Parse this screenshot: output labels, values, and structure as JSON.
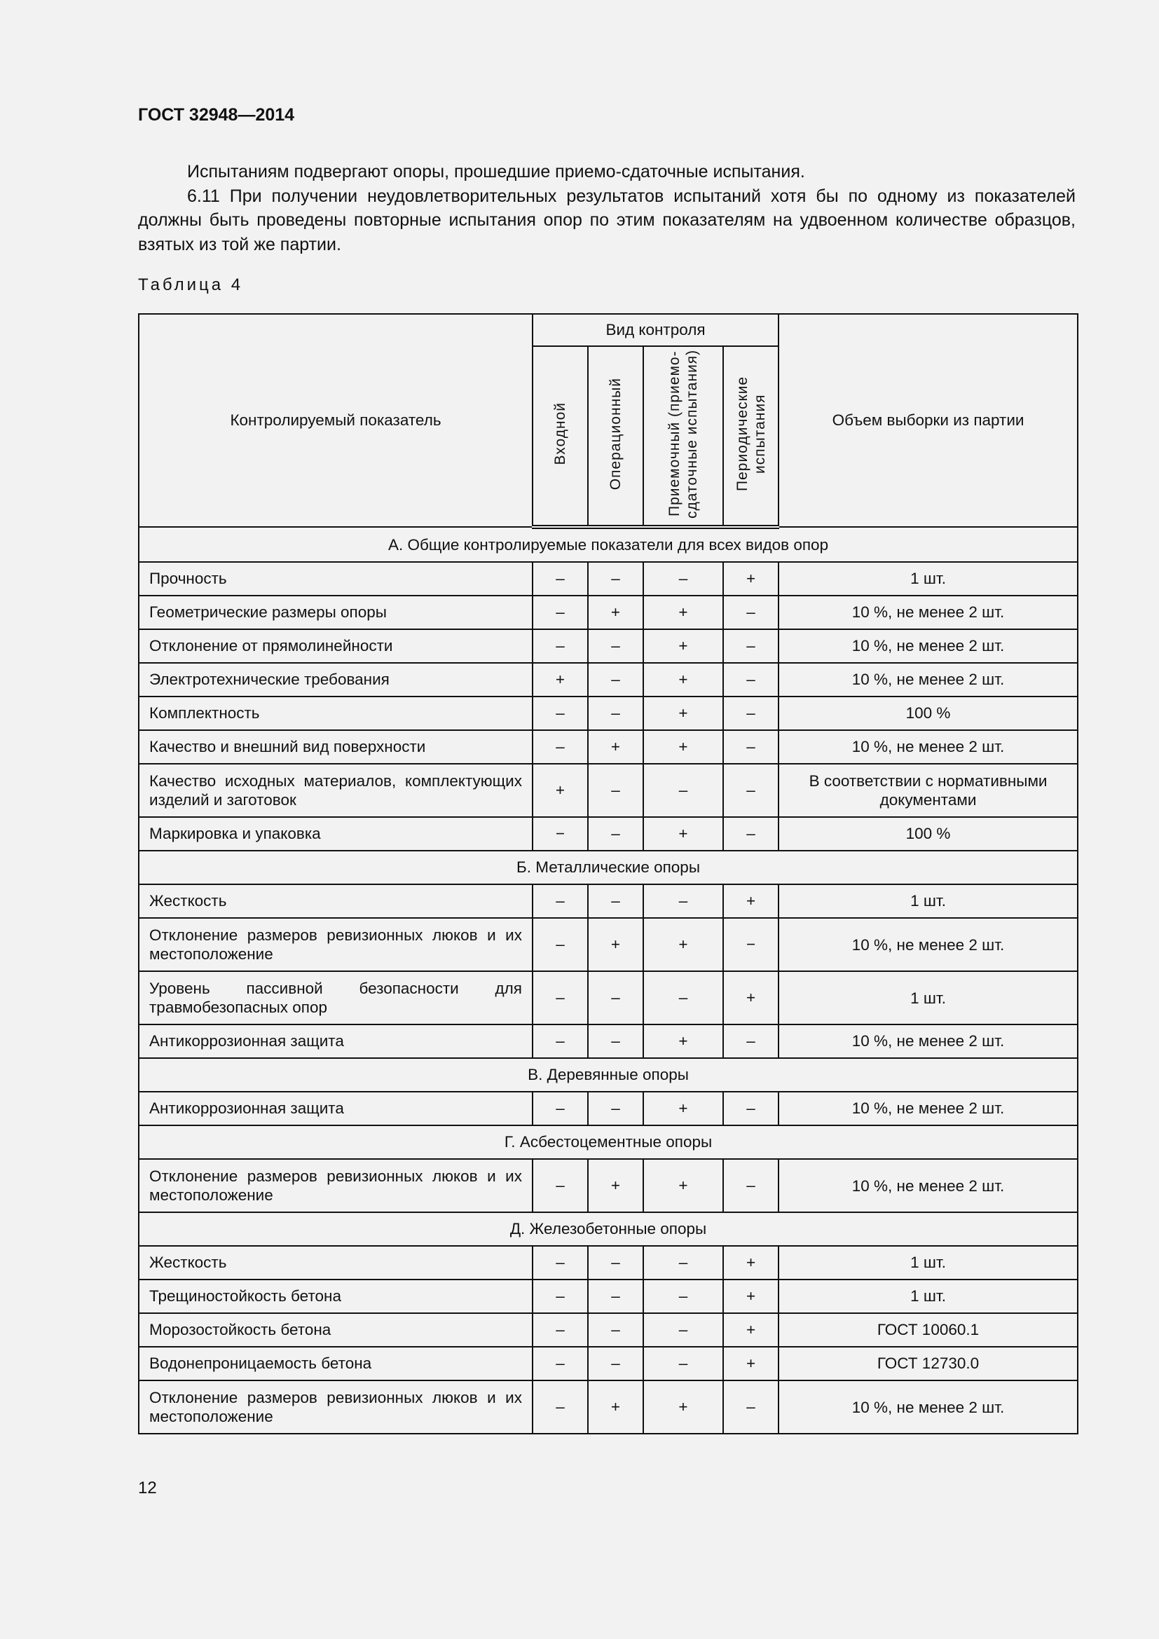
{
  "header": {
    "title": "ГОСТ 32948—2014"
  },
  "text": {
    "p1": "Испытаниям подвергают опоры, прошедшие приемо-сдаточные испытания.",
    "p2": "6.11 При получении неудовлетворительных результатов испытаний хотя бы по одному из показателей должны быть проведены повторные испытания опор по этим показателям на удвоенном количестве образцов, взятых из той же партии."
  },
  "table": {
    "caption": "Таблица 4",
    "headers": {
      "indicator": "Контролируемый показатель",
      "group": "Вид контроля",
      "c1": "Входной",
      "c2": "Операционный",
      "c3": "Приемочный (приемо-сдаточные испытания)",
      "c4": "Периодические испытания",
      "sample": "Объем выборки из партии"
    },
    "sections": [
      {
        "title": "А. Общие контролируемые показатели для всех видов опор",
        "rows": [
          [
            "Прочность",
            "–",
            "–",
            "–",
            "+",
            "1 шт."
          ],
          [
            "Геометрические размеры опоры",
            "–",
            "+",
            "+",
            "–",
            "10 %, не менее 2 шт."
          ],
          [
            "Отклонение от прямолинейности",
            "–",
            "–",
            "+",
            "–",
            "10 %, не менее 2 шт."
          ],
          [
            "Электротехнические требования",
            "+",
            "–",
            "+",
            "–",
            "10 %, не менее 2 шт."
          ],
          [
            "Комплектность",
            "–",
            "–",
            "+",
            "–",
            "100 %"
          ],
          [
            "Качество и внешний вид поверхности",
            "–",
            "+",
            "+",
            "–",
            "10 %, не менее 2 шт."
          ],
          [
            "Качество исходных материалов, комплектующих изделий и заготовок",
            "+",
            "–",
            "–",
            "–",
            "В соответствии с нормативными документами"
          ],
          [
            "Маркировка и упаковка",
            "−",
            "–",
            "+",
            "–",
            "100 %"
          ]
        ]
      },
      {
        "title": "Б. Металлические опоры",
        "rows": [
          [
            "Жесткость",
            "–",
            "–",
            "–",
            "+",
            "1 шт."
          ],
          [
            "Отклонение размеров ревизионных люков и их местоположение",
            "–",
            "+",
            "+",
            "−",
            "10 %, не менее 2 шт."
          ],
          [
            "Уровень пассивной безопасности для травмобезопасных опор",
            "–",
            "–",
            "–",
            "+",
            "1 шт."
          ],
          [
            "Антикоррозионная защита",
            "–",
            "–",
            "+",
            "–",
            "10 %, не менее 2 шт."
          ]
        ]
      },
      {
        "title": "В. Деревянные опоры",
        "rows": [
          [
            "Антикоррозионная защита",
            "–",
            "–",
            "+",
            "–",
            "10 %, не менее 2 шт."
          ]
        ]
      },
      {
        "title": "Г. Асбестоцементные опоры",
        "rows": [
          [
            "Отклонение размеров ревизионных люков и их местоположение",
            "–",
            "+",
            "+",
            "–",
            "10 %, не менее 2 шт."
          ]
        ]
      },
      {
        "title": "Д. Железобетонные опоры",
        "rows": [
          [
            "Жесткость",
            "–",
            "–",
            "–",
            "+",
            "1 шт."
          ],
          [
            "Трещиностойкость бетона",
            "–",
            "–",
            "–",
            "+",
            "1 шт."
          ],
          [
            "Морозостойкость бетона",
            "–",
            "–",
            "–",
            "+",
            "ГОСТ 10060.1"
          ],
          [
            "Водонепроницаемость бетона",
            "–",
            "–",
            "–",
            "+",
            "ГОСТ 12730.0"
          ],
          [
            "Отклонение размеров ревизионных люков и их местоположение",
            "–",
            "+",
            "+",
            "–",
            "10 %, не менее 2 шт."
          ]
        ]
      }
    ]
  },
  "footer": {
    "page_number": "12"
  }
}
